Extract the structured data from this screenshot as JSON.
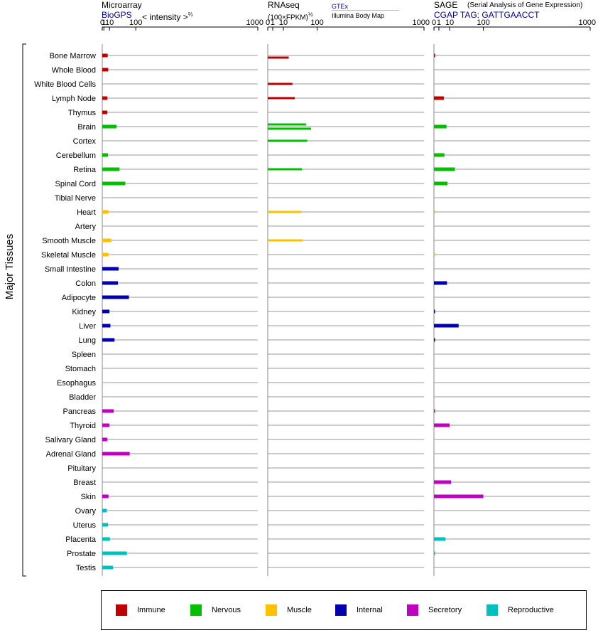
{
  "headers": {
    "microarray_title": "Microarray",
    "microarray_source": "BioGPS",
    "microarray_unit": "< intensity >",
    "microarray_unit_exp": "⅔",
    "rnaseq_title": "RNAseq",
    "rnaseq_unit": "(100×FPKM)",
    "rnaseq_unit_exp": "½",
    "rnaseq_source": "GTEx",
    "rnaseq_subsource": "Illumina Body Map",
    "sage_title": "SAGE",
    "sage_subtitle": "(Serial Analysis of Gene Expression)",
    "sage_tag": "CGAP TAG: GATTGAACCT"
  },
  "y_axis_label": "Major Tissues",
  "axis_ticks": [
    "0",
    "1",
    "10",
    "100",
    "1000"
  ],
  "colors": {
    "Immune": "#c00000",
    "Nervous": "#00c000",
    "Muscle": "#ffc000",
    "Internal": "#0000b0",
    "Secretory": "#c000c0",
    "Reproductive": "#00c0c0"
  },
  "legend": [
    "Immune",
    "Nervous",
    "Muscle",
    "Internal",
    "Secretory",
    "Reproductive"
  ],
  "chart_data": [
    {
      "type": "bar",
      "title": "Microarray",
      "xlabel": "< intensity >⅔",
      "x_scale": "power(0.667)",
      "xlim": [
        0,
        1000
      ],
      "tissues": [
        "Bone Marrow",
        "Whole Blood",
        "White Blood Cells",
        "Lymph Node",
        "Thymus",
        "Brain",
        "Cortex",
        "Cerebellum",
        "Retina",
        "Spinal Cord",
        "Tibial Nerve",
        "Heart",
        "Artery",
        "Smooth Muscle",
        "Skeletal Muscle",
        "Small Intestine",
        "Colon",
        "Adipocyte",
        "Kidney",
        "Liver",
        "Lung",
        "Spleen",
        "Stomach",
        "Esophagus",
        "Bladder",
        "Pancreas",
        "Thyroid",
        "Salivary Gland",
        "Adrenal Gland",
        "Pituitary",
        "Breast",
        "Skin",
        "Ovary",
        "Uterus",
        "Placenta",
        "Prostate",
        "Testis"
      ],
      "groups": [
        "Immune",
        "Immune",
        "Immune",
        "Immune",
        "Immune",
        "Nervous",
        "Nervous",
        "Nervous",
        "Nervous",
        "Nervous",
        "Nervous",
        "Muscle",
        "Muscle",
        "Muscle",
        "Muscle",
        "Internal",
        "Internal",
        "Internal",
        "Internal",
        "Internal",
        "Internal",
        "Internal",
        "Internal",
        "Internal",
        "Internal",
        "Secretory",
        "Secretory",
        "Secretory",
        "Secretory",
        "Secretory",
        "Secretory",
        "Secretory",
        "Reproductive",
        "Reproductive",
        "Reproductive",
        "Reproductive",
        "Reproductive"
      ],
      "values": [
        [
          6.5
        ],
        [
          7.5
        ],
        [],
        [
          6
        ],
        [
          5.8
        ],
        [
          28
        ],
        [],
        [
          7
        ],
        [
          37
        ],
        [
          57
        ],
        [],
        [
          8
        ],
        [],
        [
          14
        ],
        [
          8
        ],
        [
          34
        ],
        [
          32
        ],
        [
          71
        ],
        [
          10
        ],
        [
          12
        ],
        [
          22
        ],
        [],
        [],
        [],
        [],
        [
          20
        ],
        [
          10
        ],
        [
          6
        ],
        [
          74
        ],
        [],
        [],
        [
          8
        ],
        [
          5
        ],
        [
          7
        ],
        [
          11
        ],
        [
          63
        ],
        [
          18
        ]
      ]
    },
    {
      "type": "bar",
      "title": "RNAseq",
      "xlabel": "(100×FPKM)½",
      "x_scale": "power(0.5)",
      "xlim": [
        0,
        1000
      ],
      "tissues": [
        "Bone Marrow",
        "Whole Blood",
        "White Blood Cells",
        "Lymph Node",
        "Thymus",
        "Brain",
        "Cortex",
        "Cerebellum",
        "Retina",
        "Spinal Cord",
        "Tibial Nerve",
        "Heart",
        "Artery",
        "Smooth Muscle",
        "Skeletal Muscle",
        "Small Intestine",
        "Colon",
        "Adipocyte",
        "Kidney",
        "Liver",
        "Lung",
        "Spleen",
        "Stomach",
        "Esophagus",
        "Bladder",
        "Pancreas",
        "Thyroid",
        "Salivary Gland",
        "Adrenal Gland",
        "Pituitary",
        "Breast",
        "Skin",
        "Ovary",
        "Uterus",
        "Placenta",
        "Prostate",
        "Testis"
      ],
      "groups": [
        "Immune",
        "Immune",
        "Immune",
        "Immune",
        "Immune",
        "Nervous",
        "Nervous",
        "Nervous",
        "Nervous",
        "Nervous",
        "Nervous",
        "Muscle",
        "Muscle",
        "Muscle",
        "Muscle",
        "Internal",
        "Internal",
        "Internal",
        "Internal",
        "Internal",
        "Internal",
        "Internal",
        "Internal",
        "Internal",
        "Internal",
        "Secretory",
        "Secretory",
        "Secretory",
        "Secretory",
        "Secretory",
        "Secretory",
        "Secretory",
        "Reproductive",
        "Reproductive",
        "Reproductive",
        "Reproductive",
        "Reproductive"
      ],
      "series": [
        "GTEx",
        "Illumina Body Map"
      ],
      "values": [
        [
          null,
          18
        ],
        [],
        [
          25
        ],
        [
          30
        ],
        [],
        [
          60,
          77
        ],
        [
          64
        ],
        [],
        [
          48
        ],
        [],
        [],
        [
          46
        ],
        [],
        [
          50
        ],
        [],
        [],
        [],
        [],
        [],
        [],
        [],
        [],
        [],
        [],
        [],
        [],
        [],
        [],
        [],
        [],
        [],
        [],
        [],
        [],
        [],
        [],
        []
      ]
    },
    {
      "type": "bar",
      "title": "SAGE",
      "xlabel": "",
      "x_scale": "power(0.5)",
      "xlim": [
        0,
        1000
      ],
      "tissues": [
        "Bone Marrow",
        "Whole Blood",
        "White Blood Cells",
        "Lymph Node",
        "Thymus",
        "Brain",
        "Cortex",
        "Cerebellum",
        "Retina",
        "Spinal Cord",
        "Tibial Nerve",
        "Heart",
        "Artery",
        "Smooth Muscle",
        "Skeletal Muscle",
        "Small Intestine",
        "Colon",
        "Adipocyte",
        "Kidney",
        "Liver",
        "Lung",
        "Spleen",
        "Stomach",
        "Esophagus",
        "Bladder",
        "Pancreas",
        "Thyroid",
        "Salivary Gland",
        "Adrenal Gland",
        "Pituitary",
        "Breast",
        "Skin",
        "Ovary",
        "Uterus",
        "Placenta",
        "Prostate",
        "Testis"
      ],
      "groups": [
        "Immune",
        "Immune",
        "Immune",
        "Immune",
        "Immune",
        "Nervous",
        "Nervous",
        "Nervous",
        "Nervous",
        "Nervous",
        "Nervous",
        "Muscle",
        "Muscle",
        "Muscle",
        "Muscle",
        "Internal",
        "Internal",
        "Internal",
        "Internal",
        "Internal",
        "Internal",
        "Internal",
        "Internal",
        "Internal",
        "Internal",
        "Secretory",
        "Secretory",
        "Secretory",
        "Secretory",
        "Secretory",
        "Secretory",
        "Secretory",
        "Reproductive",
        "Reproductive",
        "Reproductive",
        "Reproductive",
        "Reproductive"
      ],
      "values": [
        [
          0.05
        ],
        [],
        [],
        [
          4
        ],
        [],
        [
          6.5
        ],
        [],
        [
          4.5
        ],
        [
          18
        ],
        [
          7.5
        ],
        [],
        [
          0.02
        ],
        [],
        [],
        [
          0.02
        ],
        [],
        [
          7
        ],
        [],
        [
          0.03
        ],
        [
          25
        ],
        [
          0.03
        ],
        [],
        [],
        [],
        [],
        [
          0.03
        ],
        [
          10
        ],
        [],
        [],
        [],
        [
          12
        ],
        [
          100
        ],
        [],
        [],
        [
          5.5
        ],
        [
          0.03
        ],
        []
      ]
    }
  ]
}
